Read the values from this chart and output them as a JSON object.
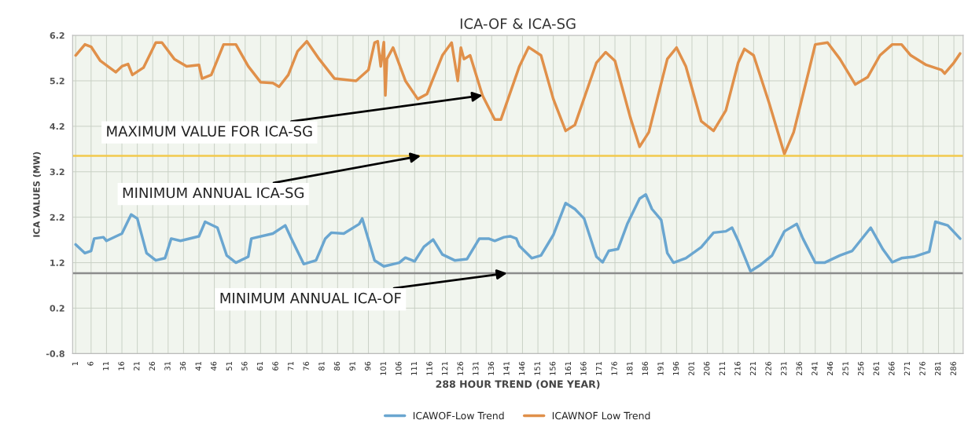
{
  "chart_data": {
    "type": "line",
    "title": "ICA-OF & ICA-SG",
    "xlabel": "288 HOUR TREND (ONE YEAR)",
    "ylabel": "ICA VALUES (MW)",
    "xlim": [
      0,
      289
    ],
    "xticks": [
      1,
      6,
      11,
      16,
      21,
      26,
      31,
      36,
      41,
      46,
      51,
      56,
      61,
      66,
      71,
      76,
      81,
      86,
      91,
      96,
      101,
      106,
      111,
      116,
      121,
      126,
      131,
      136,
      141,
      146,
      151,
      156,
      161,
      166,
      171,
      176,
      181,
      186,
      191,
      196,
      201,
      206,
      211,
      216,
      221,
      226,
      231,
      236,
      241,
      246,
      251,
      256,
      261,
      266,
      271,
      276,
      281,
      286
    ],
    "ylim": [
      -0.8,
      6.2
    ],
    "yticks": [
      -0.8,
      0.2,
      1.2,
      2.2,
      3.2,
      4.2,
      5.2,
      6.2
    ],
    "grid": true,
    "legend": "bottom",
    "series": [
      {
        "name": "ICAWOF-Low Trend",
        "color": "#6aa6d0",
        "x": [
          1,
          4,
          6,
          7,
          10,
          11,
          16,
          19,
          21,
          24,
          27,
          30,
          32,
          35,
          41,
          43,
          47,
          50,
          53,
          57,
          58,
          65,
          69,
          71,
          75,
          79,
          82,
          84,
          88,
          93,
          94,
          98,
          101,
          106,
          108,
          111,
          114,
          117,
          120,
          124,
          128,
          132,
          135,
          137,
          140,
          142,
          144,
          145,
          149,
          152,
          156,
          160,
          163,
          166,
          170,
          172,
          174,
          177,
          180,
          184,
          186,
          188,
          191,
          193,
          195,
          199,
          204,
          208,
          212,
          214,
          216,
          220,
          223,
          227,
          231,
          235,
          237,
          241,
          244,
          249,
          253,
          259,
          263,
          266,
          269,
          273,
          278,
          280,
          284,
          288
        ],
        "values": [
          1.6,
          1.41,
          1.46,
          1.73,
          1.76,
          1.68,
          1.84,
          2.26,
          2.17,
          1.41,
          1.25,
          1.3,
          1.73,
          1.68,
          1.78,
          2.1,
          1.97,
          1.36,
          1.2,
          1.33,
          1.73,
          1.84,
          2.02,
          1.73,
          1.17,
          1.25,
          1.73,
          1.86,
          1.84,
          2.05,
          2.17,
          1.25,
          1.12,
          1.2,
          1.31,
          1.23,
          1.55,
          1.71,
          1.38,
          1.25,
          1.28,
          1.73,
          1.73,
          1.68,
          1.76,
          1.78,
          1.73,
          1.57,
          1.3,
          1.36,
          1.81,
          2.51,
          2.38,
          2.17,
          1.33,
          1.21,
          1.46,
          1.5,
          2.05,
          2.61,
          2.7,
          2.38,
          2.14,
          1.41,
          1.2,
          1.3,
          1.54,
          1.86,
          1.89,
          1.97,
          1.68,
          1.01,
          1.14,
          1.36,
          1.89,
          2.05,
          1.73,
          1.2,
          1.2,
          1.36,
          1.46,
          1.97,
          1.49,
          1.21,
          1.3,
          1.33,
          1.44,
          2.1,
          2.02,
          1.73
        ]
      },
      {
        "name": "ICAWNOF Low Trend",
        "color": "#e0904a",
        "x": [
          1,
          4,
          6,
          9,
          12,
          14,
          16,
          18,
          19.4,
          23,
          27,
          29,
          33,
          37,
          41,
          42,
          45,
          49,
          53,
          57,
          61,
          65,
          67,
          70,
          73,
          76,
          80,
          85,
          92,
          96,
          98,
          99,
          100,
          101,
          101.5,
          102,
          104,
          108,
          112,
          115,
          120,
          123,
          125,
          126,
          127,
          129,
          133,
          137,
          139,
          145,
          148,
          152,
          156,
          160,
          163,
          170,
          173,
          176,
          181,
          184,
          187,
          193,
          196,
          199,
          204,
          208,
          212,
          216,
          218,
          221,
          226,
          231,
          234,
          239,
          241,
          245,
          249,
          254,
          258,
          262,
          266,
          269,
          272,
          277,
          282,
          283,
          286,
          288
        ],
        "values": [
          5.76,
          6.0,
          5.95,
          5.64,
          5.49,
          5.39,
          5.52,
          5.57,
          5.33,
          5.49,
          6.04,
          6.04,
          5.68,
          5.52,
          5.55,
          5.25,
          5.33,
          6.0,
          6.0,
          5.52,
          5.17,
          5.15,
          5.07,
          5.33,
          5.85,
          6.07,
          5.68,
          5.25,
          5.2,
          5.44,
          6.04,
          6.07,
          5.52,
          6.05,
          4.88,
          5.68,
          5.93,
          5.2,
          4.8,
          4.91,
          5.76,
          6.04,
          5.2,
          5.93,
          5.68,
          5.76,
          4.88,
          4.35,
          4.35,
          5.52,
          5.94,
          5.76,
          4.8,
          4.1,
          4.23,
          5.6,
          5.83,
          5.64,
          4.39,
          3.75,
          4.07,
          5.68,
          5.93,
          5.52,
          4.31,
          4.1,
          4.55,
          5.6,
          5.9,
          5.76,
          4.72,
          3.59,
          4.07,
          5.44,
          6.0,
          6.04,
          5.68,
          5.12,
          5.28,
          5.76,
          6.0,
          6.0,
          5.76,
          5.55,
          5.44,
          5.36,
          5.6,
          5.8
        ]
      }
    ],
    "ref_lines": [
      {
        "axis": "y",
        "value": 3.55,
        "color": "#f2c94c"
      },
      {
        "axis": "y",
        "value": 0.97,
        "color": "#8c8c8c"
      }
    ],
    "annotations": [
      {
        "text": "MAXIMUM VALUE FOR ICA-SG",
        "x": 133,
        "y": 4.88
      },
      {
        "text": "MINIMUM ANNUAL ICA-SG",
        "x": 113,
        "y": 3.55
      },
      {
        "text": "MINIMUM ANNUAL ICA-OF",
        "x": 141,
        "y": 0.97
      }
    ]
  }
}
